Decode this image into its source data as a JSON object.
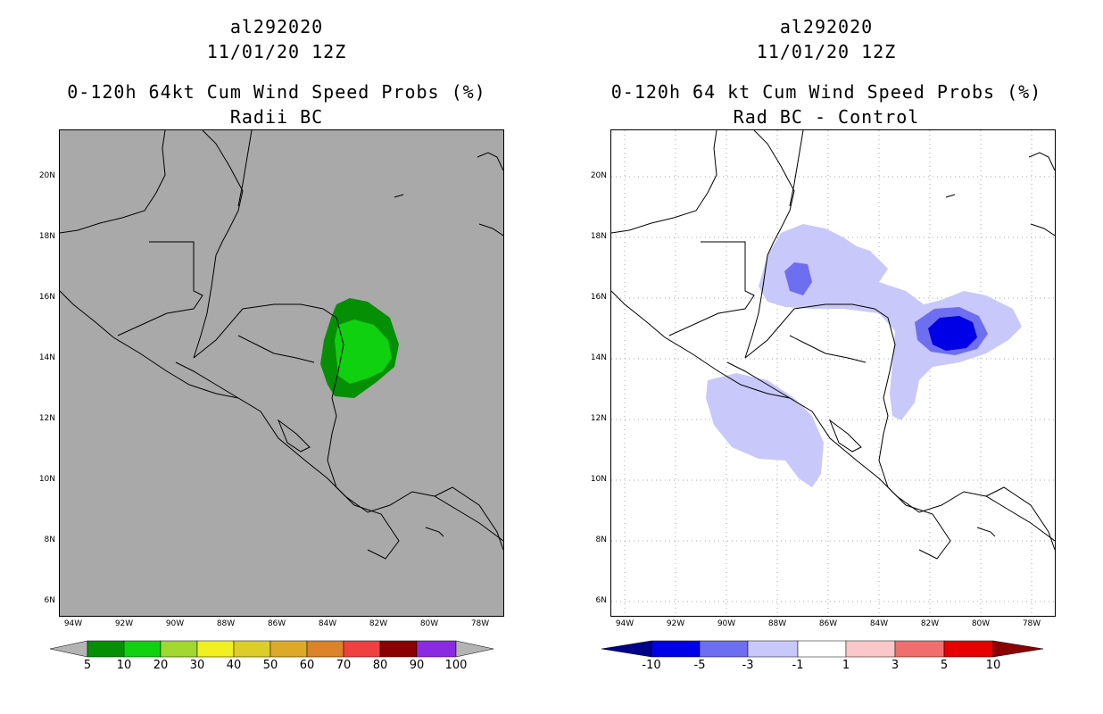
{
  "left_panel": {
    "storm_id": "al292020",
    "datetime": "11/01/20 12Z",
    "title": "0-120h 64kt Cum Wind Speed Probs (%)",
    "subtitle": "Radii BC",
    "background_color": "#a9a9a9",
    "colorbar": {
      "labels": [
        "5",
        "10",
        "20",
        "30",
        "40",
        "50",
        "60",
        "70",
        "80",
        "90",
        "100"
      ],
      "colors": [
        "#058f05",
        "#10d110",
        "#a0d830",
        "#f0f020",
        "#dccd28",
        "#dcaa28",
        "#dc8228",
        "#f04040",
        "#8b0000",
        "#8a2be2"
      ],
      "end_color": "#b4b4b4"
    }
  },
  "right_panel": {
    "storm_id": "al292020",
    "datetime": "11/01/20 12Z",
    "title": "0-120h 64 kt Cum Wind Speed Probs (%)",
    "subtitle": "Rad BC - Control",
    "background_color": "#ffffff",
    "colorbar": {
      "labels": [
        "-10",
        "-5",
        "-3",
        "-1",
        "1",
        "3",
        "5",
        "10"
      ],
      "colors": [
        "#0000e6",
        "#6e6ef0",
        "#c8c8fa",
        "#ffffff",
        "#fac8c8",
        "#f06e6e",
        "#e60000"
      ],
      "left_end_color": "#00008b",
      "right_end_color": "#8b0000"
    }
  },
  "axes": {
    "lat_labels": [
      "20N",
      "18N",
      "16N",
      "14N",
      "12N",
      "10N",
      "8N",
      "6N"
    ],
    "lon_labels": [
      "94W",
      "92W",
      "90W",
      "88W",
      "86W",
      "84W",
      "82W",
      "80W",
      "78W"
    ],
    "lat_range": [
      5.5,
      21.5
    ],
    "lon_range": [
      94.5,
      77.5
    ]
  }
}
